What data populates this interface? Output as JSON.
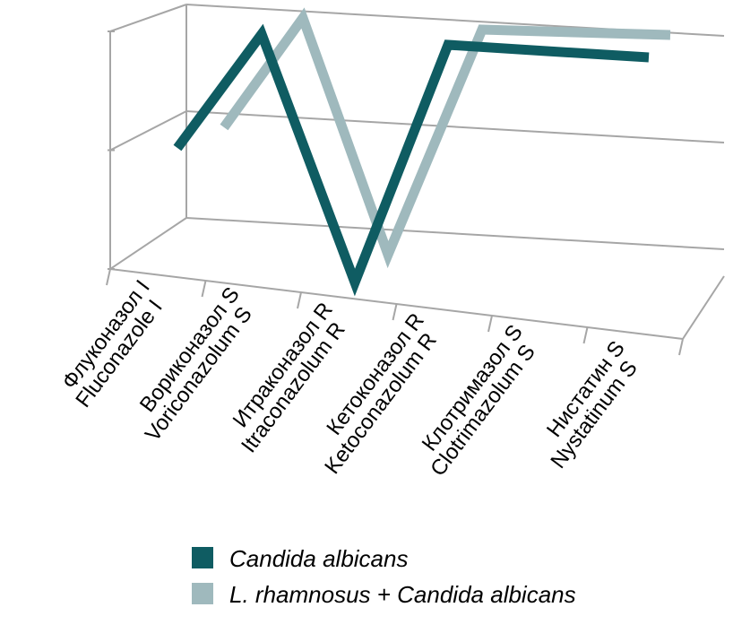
{
  "chart_data": {
    "type": "line",
    "title": "",
    "xlabel": "",
    "ylabel": "",
    "categories": [
      [
        "Флуконазол I",
        "Fluconazole I"
      ],
      [
        "Вориконазол S",
        "Voriconazolum S"
      ],
      [
        "Итраконазол R",
        "Itraconazolum R"
      ],
      [
        "Кетоконазол R",
        "Ketoconazolum R"
      ],
      [
        "Клотримазол S",
        "Clotrimazolum S"
      ],
      [
        "Нистатин S",
        "Nystatinum S"
      ]
    ],
    "series": [
      {
        "name": "Candida albicans",
        "values": [
          2,
          3,
          1,
          3,
          3,
          3
        ],
        "color": "#0f5c62"
      },
      {
        "name": "L. rhamnosus + Candida albicans",
        "values": [
          2,
          3,
          1,
          3,
          3,
          3
        ],
        "color": "#9fb9bd"
      }
    ],
    "ylim": [
      1,
      3
    ],
    "grid": true,
    "legend_position": "bottom"
  }
}
